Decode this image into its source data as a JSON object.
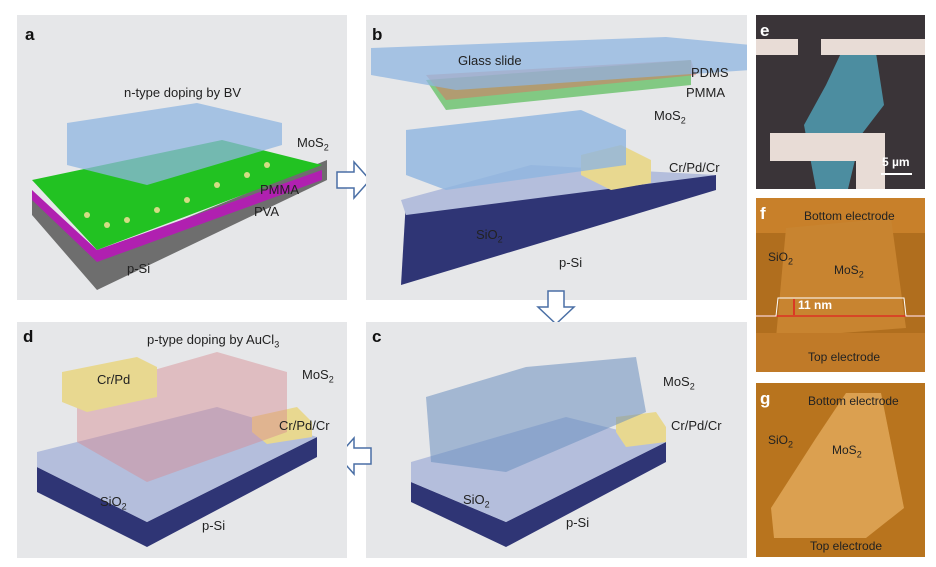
{
  "panels": {
    "a": {
      "label": "a",
      "doping": "n-type doping by BV",
      "mos2": "MoS",
      "mos2_sub": "2",
      "pmma": "PMMA",
      "pva": "PVA",
      "psi": "p-Si"
    },
    "b": {
      "label": "b",
      "glass": "Glass slide",
      "pdms": "PDMS",
      "pmma": "PMMA",
      "mos2": "MoS",
      "mos2_sub": "2",
      "electrode": "Cr/Pd/Cr",
      "sio2": "SiO",
      "sio2_sub": "2",
      "psi": "p-Si"
    },
    "c": {
      "label": "c",
      "mos2": "MoS",
      "mos2_sub": "2",
      "electrode": "Cr/Pd/Cr",
      "sio2": "SiO",
      "sio2_sub": "2",
      "psi": "p-Si"
    },
    "d": {
      "label": "d",
      "doping": "p-type doping by AuCl",
      "doping_sub": "3",
      "mos2": "MoS",
      "mos2_sub": "2",
      "top_electrode": "Cr/Pd",
      "electrode": "Cr/Pd/Cr",
      "sio2": "SiO",
      "sio2_sub": "2",
      "psi": "p-Si"
    },
    "e": {
      "label": "e",
      "scale": "5 µm"
    },
    "f": {
      "label": "f",
      "bottom": "Bottom electrode",
      "sio2": "SiO",
      "sio2_sub": "2",
      "mos2": "MoS",
      "mos2_sub": "2",
      "height": "11 nm",
      "top": "Top electrode"
    },
    "g": {
      "label": "g",
      "bottom": "Bottom electrode",
      "sio2": "SiO",
      "sio2_sub": "2",
      "mos2": "MoS",
      "mos2_sub": "2",
      "top": "Top electrode"
    }
  },
  "colors": {
    "pmma_a": "#22c222",
    "pva": "#b020b0",
    "psi_a": "#707070",
    "substrate": "#2f3575",
    "sio2": "#b4bedc",
    "glass": "#8fb5e0",
    "electrode": "#e8d890",
    "afm": "#c07a20"
  }
}
